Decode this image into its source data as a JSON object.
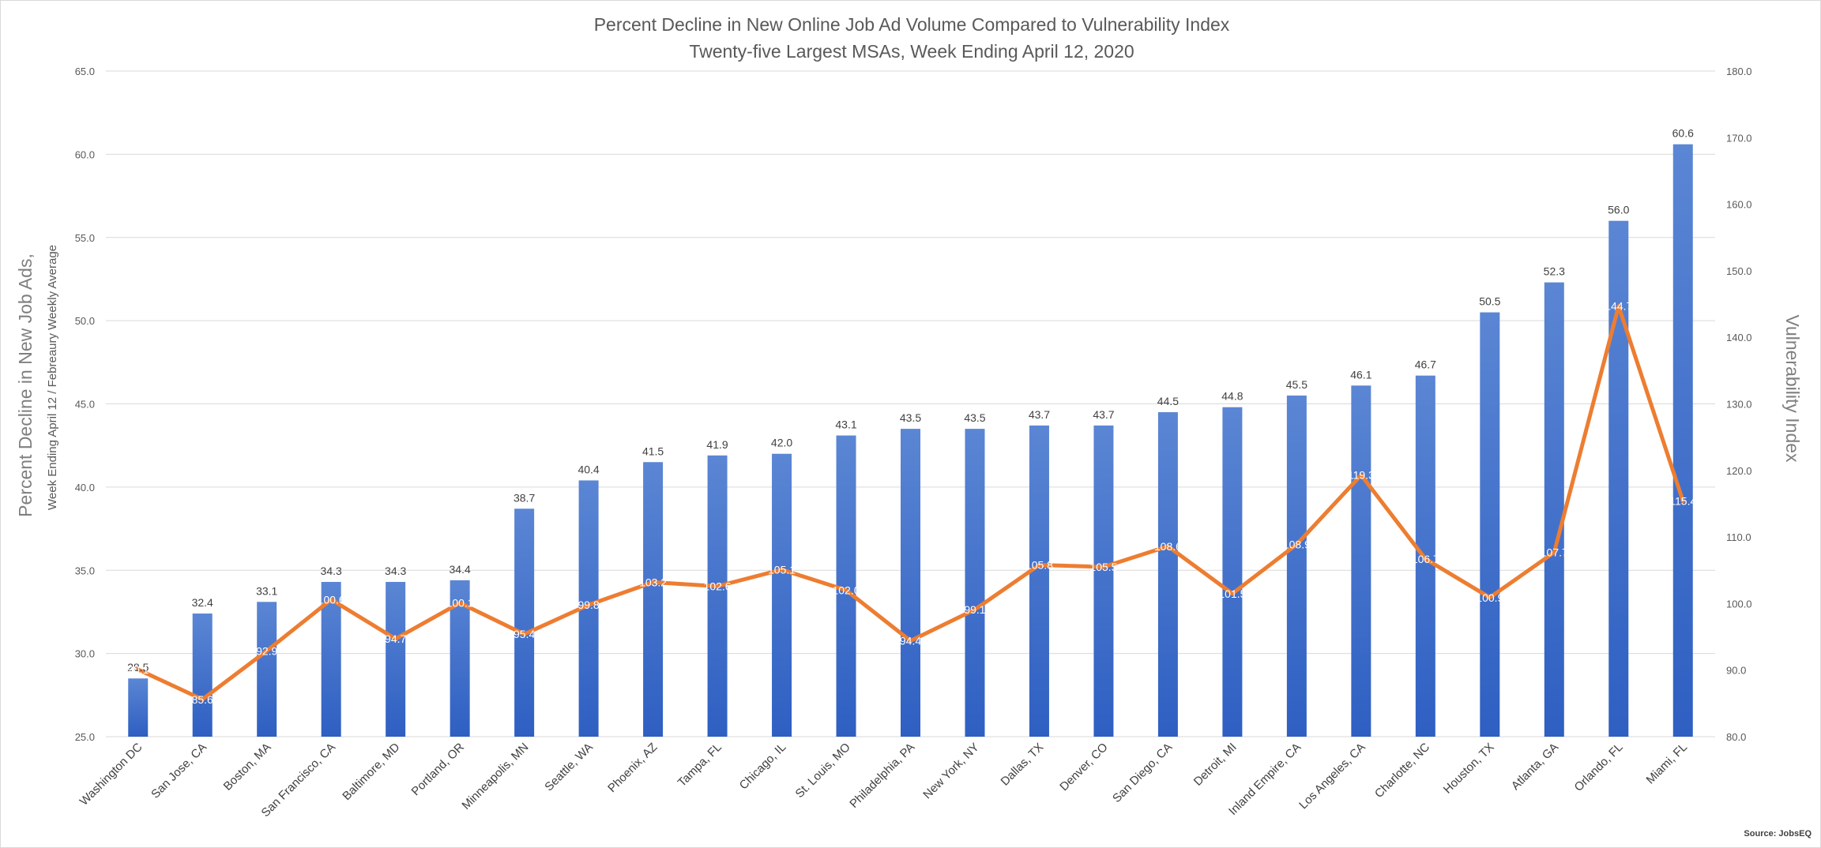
{
  "chart_data": {
    "type": "bar+line",
    "title": "Percent Decline in New Online Job Ad Volume Compared to Vulnerability Index",
    "subtitle": "Twenty-five Largest MSAs, Week Ending April 12, 2020",
    "ylabel_left": "Percent Decline in New Job Ads,",
    "ylabel_left_sub": "Week Ending April 12 / Febreaury Weekly Average",
    "ylabel_right": "Vulnerability Index",
    "ylim_left": [
      25,
      65
    ],
    "ylim_right": [
      80,
      180
    ],
    "yticks_left": [
      "25.0",
      "30.0",
      "35.0",
      "40.0",
      "45.0",
      "50.0",
      "55.0",
      "60.0",
      "65.0"
    ],
    "yticks_right": [
      "80.0",
      "90.0",
      "100.0",
      "110.0",
      "120.0",
      "130.0",
      "140.0",
      "150.0",
      "160.0",
      "170.0",
      "180.0"
    ],
    "grid": true,
    "bar_color": "#4472C4",
    "line_color": "#ED7D31",
    "categories": [
      "Washington DC",
      "San Jose, CA",
      "Boston, MA",
      "San Francisco, CA",
      "Baltimore, MD",
      "Portland, OR",
      "Minneapolis, MN",
      "Seattle, WA",
      "Phoenix, AZ",
      "Tampa, FL",
      "Chicago, IL",
      "St. Louis, MO",
      "Philadelphia, PA",
      "New York, NY",
      "Dallas, TX",
      "Denver, CO",
      "San Diego, CA",
      "Detroit, MI",
      "Inland Empire, CA",
      "Los Angeles, CA",
      "Charlotte, NC",
      "Houston, TX",
      "Atlanta, GA",
      "Orlando, FL",
      "Miami, FL"
    ],
    "series": [
      {
        "type": "bar",
        "axis": "left",
        "values": [
          28.5,
          32.4,
          33.1,
          34.3,
          34.3,
          34.4,
          38.7,
          40.4,
          41.5,
          41.9,
          42.0,
          43.1,
          43.5,
          43.5,
          43.7,
          43.7,
          44.5,
          44.8,
          45.5,
          46.1,
          46.7,
          50.5,
          52.3,
          56.0,
          60.6
        ],
        "labels": [
          "28.5",
          "32.4",
          "33.1",
          "34.3",
          "34.3",
          "34.4",
          "38.7",
          "40.4",
          "41.5",
          "41.9",
          "42.0",
          "43.1",
          "43.5",
          "43.5",
          "43.7",
          "43.7",
          "44.5",
          "44.8",
          "45.5",
          "46.1",
          "46.7",
          "50.5",
          "52.3",
          "56.0",
          "60.6"
        ]
      },
      {
        "type": "line",
        "axis": "right",
        "values": [
          90.1,
          85.6,
          92.9,
          100.6,
          94.7,
          100.1,
          95.4,
          99.8,
          103.2,
          102.6,
          105.1,
          102.0,
          94.4,
          99.1,
          105.8,
          105.5,
          108.6,
          101.5,
          108.9,
          119.3,
          106.7,
          100.9,
          107.7,
          144.7,
          115.4
        ],
        "labels": [
          "90.1",
          "85.6",
          "92.9",
          "100.6",
          "94.7",
          "100.1",
          "95.4",
          "99.8",
          "103.2",
          "102.6",
          "105.1",
          "102.0",
          "94.4",
          "99.1",
          "105.8",
          "105.5",
          "108.6",
          "101.5",
          "108.9",
          "119.3",
          "106.7",
          "100.9",
          "107.7",
          "144.7",
          "115.4"
        ]
      }
    ],
    "source": "Source: JobsEQ"
  }
}
